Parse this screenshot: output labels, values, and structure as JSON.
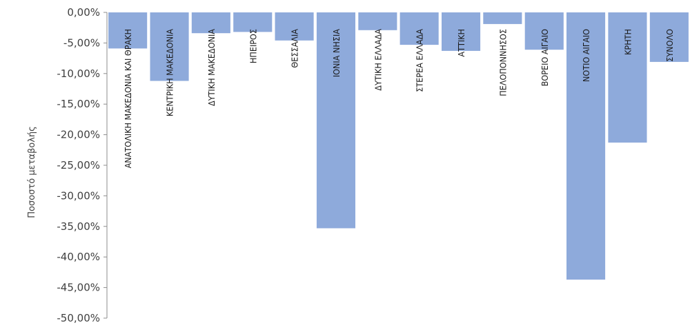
{
  "chart_data": {
    "type": "bar",
    "title": "",
    "xlabel": "",
    "ylabel": "Ποσοστό μεταβολής",
    "ylim": [
      -50,
      0
    ],
    "yticks": [
      "0,00%",
      "-5,00%",
      "-10,00%",
      "-15,00%",
      "-20,00%",
      "-25,00%",
      "-30,00%",
      "-35,00%",
      "-40,00%",
      "-45,00%",
      "-50,00%"
    ],
    "grid": false,
    "legend": "none",
    "bar_color": "#8eaadb",
    "categories": [
      "ΑΝΑΤΟΛΙΚΗ ΜΑΚΕΔΟΝΙΑ ΚΑΙ ΘΡΑΚΗ",
      "ΚΕΝΤΡΙΚΗ ΜΑΚΕΔΟΝΙΑ",
      "ΔΥΤΙΚΗ ΜΑΚΕΔΟΝΙΑ",
      "ΗΠΕΙΡΟΣ",
      "ΘΕΣΣΑΛΙΑ",
      "ΙΟΝΙΑ ΝΗΣΙΑ",
      "ΔΥΤΙΚΗ ΕΛΛΑΔΑ",
      "ΣΤΕΡΕΑ ΕΛΛΑΔΑ",
      "ΑΤΤΙΚΗ",
      "ΠΕΛΟΠΟΝΝΗΣΟΣ",
      "ΒΟΡΕΙΟ ΑΙΓΑΙΟ",
      "ΝΟΤΙΟ ΑΙΓΑΙΟ",
      "ΚΡΗΤΗ",
      "ΣΥΝΟΛΟ"
    ],
    "values": [
      -5.9,
      -11.2,
      -3.4,
      -3.2,
      -4.6,
      -35.3,
      -2.9,
      -5.3,
      -6.3,
      -1.9,
      -6.1,
      -43.7,
      -21.3,
      -8.1
    ]
  }
}
